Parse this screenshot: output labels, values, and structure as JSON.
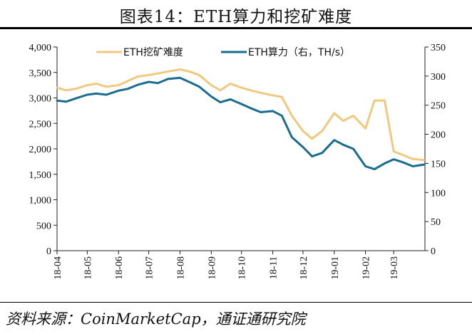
{
  "title": "图表14：ETH算力和挖矿难度",
  "source": "资料来源：CoinMarketCap，通证通研究院",
  "colors": {
    "difficulty": "#f0c97e",
    "hashrate": "#1a6d8e",
    "axis": "#222222"
  },
  "chart_data": {
    "type": "line",
    "legend_position": "top",
    "grid": false,
    "x_ticks": [
      "18-04",
      "18-05",
      "18-06",
      "18-07",
      "18-08",
      "18-09",
      "18-10",
      "18-11",
      "18-12",
      "19-01",
      "19-02",
      "19-03"
    ],
    "y_left": {
      "range": [
        0,
        4000
      ],
      "ticks": [
        "0",
        "500",
        "1,000",
        "1,500",
        "2,000",
        "2,500",
        "3,000",
        "3,500",
        "4,000"
      ]
    },
    "y_right": {
      "range": [
        0,
        350
      ],
      "ticks": [
        "0",
        "50",
        "100",
        "150",
        "200",
        "250",
        "300",
        "350"
      ]
    },
    "series": [
      {
        "name": "ETH挖矿难度",
        "axis": "left",
        "x": [
          "2018-04-01",
          "2018-04-10",
          "2018-04-20",
          "2018-05-01",
          "2018-05-10",
          "2018-05-20",
          "2018-06-01",
          "2018-06-10",
          "2018-06-20",
          "2018-07-01",
          "2018-07-10",
          "2018-07-20",
          "2018-08-01",
          "2018-08-10",
          "2018-08-20",
          "2018-09-01",
          "2018-09-10",
          "2018-09-20",
          "2018-10-01",
          "2018-10-10",
          "2018-10-20",
          "2018-11-01",
          "2018-11-10",
          "2018-11-20",
          "2018-12-01",
          "2018-12-10",
          "2018-12-20",
          "2019-01-01",
          "2019-01-10",
          "2019-01-20",
          "2019-02-01",
          "2019-02-10",
          "2019-02-20",
          "2019-03-01",
          "2019-03-10",
          "2019-03-20",
          "2019-03-31"
        ],
        "values": [
          3200,
          3150,
          3180,
          3250,
          3280,
          3220,
          3250,
          3330,
          3420,
          3450,
          3480,
          3520,
          3560,
          3520,
          3450,
          3250,
          3150,
          3280,
          3200,
          3150,
          3100,
          3050,
          3020,
          2650,
          2350,
          2200,
          2350,
          2700,
          2550,
          2650,
          2400,
          2950,
          2950,
          1950,
          1880,
          1800,
          1780
        ]
      },
      {
        "name": "ETH算力（右，TH/s）",
        "axis": "right",
        "x": [
          "2018-04-01",
          "2018-04-10",
          "2018-04-20",
          "2018-05-01",
          "2018-05-10",
          "2018-05-20",
          "2018-06-01",
          "2018-06-10",
          "2018-06-20",
          "2018-07-01",
          "2018-07-10",
          "2018-07-20",
          "2018-08-01",
          "2018-08-10",
          "2018-08-20",
          "2018-09-01",
          "2018-09-10",
          "2018-09-20",
          "2018-10-01",
          "2018-10-10",
          "2018-10-20",
          "2018-11-01",
          "2018-11-10",
          "2018-11-20",
          "2018-12-01",
          "2018-12-10",
          "2018-12-20",
          "2019-01-01",
          "2019-01-10",
          "2019-01-20",
          "2019-02-01",
          "2019-02-10",
          "2019-02-20",
          "2019-03-01",
          "2019-03-10",
          "2019-03-20",
          "2019-03-31"
        ],
        "values": [
          258,
          256,
          262,
          268,
          270,
          268,
          275,
          278,
          285,
          290,
          288,
          295,
          297,
          290,
          282,
          265,
          255,
          260,
          252,
          245,
          238,
          240,
          232,
          195,
          178,
          162,
          168,
          190,
          182,
          175,
          145,
          140,
          150,
          157,
          152,
          145,
          148
        ]
      }
    ]
  }
}
